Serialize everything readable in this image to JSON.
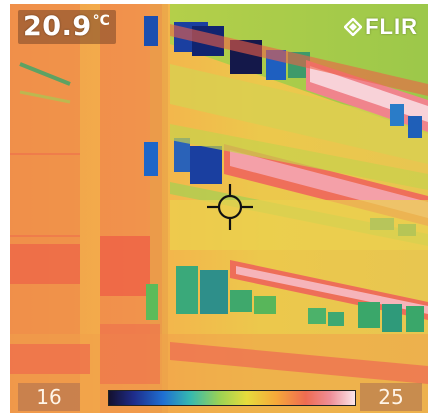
{
  "spot_temperature": {
    "value": "20.9",
    "unit": "°C"
  },
  "brand": {
    "name": "FLIR"
  },
  "temperature_scale": {
    "min": "16",
    "max": "25",
    "palette": [
      "#14102e",
      "#1e2c8a",
      "#1f6fd2",
      "#35b9b0",
      "#9bd254",
      "#e6dc3c",
      "#f6a83a",
      "#ee6b52",
      "#ee8e98",
      "#fbe6ea"
    ]
  },
  "colors": {
    "cold": "#1a3fa0",
    "cool": "#3aa76a",
    "mild": "#a8d24a",
    "warm_yellow": "#e8d44e",
    "warm_orange": "#f3a24a",
    "hot_red": "#ee5e4e",
    "hottest_pink": "#f7cdd2"
  },
  "icons": {
    "logo": "flir-logo-icon",
    "crosshair": "spot-meter-crosshair-icon"
  }
}
